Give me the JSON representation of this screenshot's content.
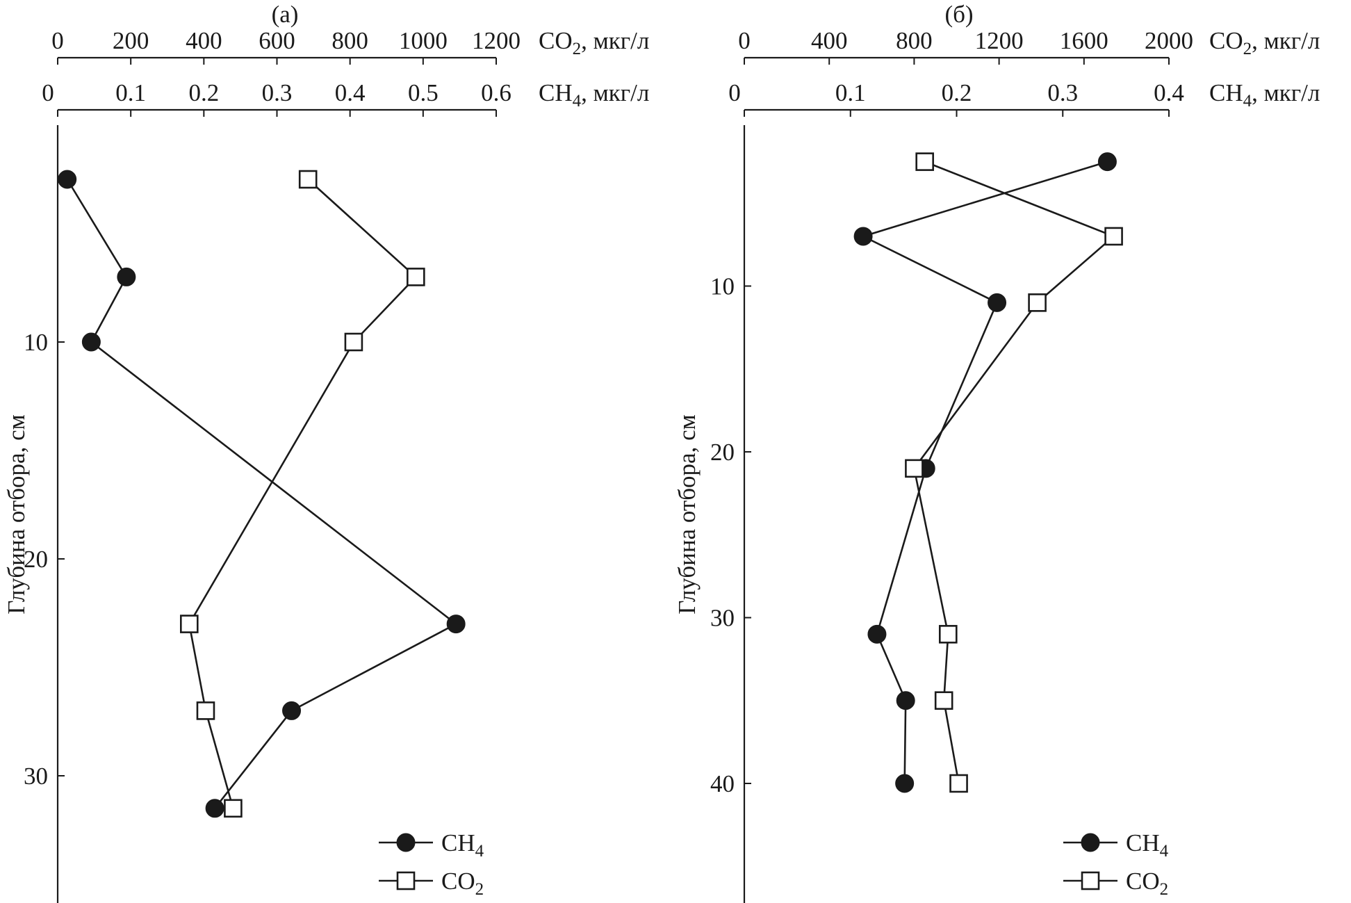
{
  "chart_data": [
    {
      "type": "line",
      "title": "(а)",
      "ylabel": "Глубина отбора, см",
      "ylim": [
        0,
        36
      ],
      "y_ticks": [
        10,
        20,
        30
      ],
      "x_axes": [
        {
          "series": "CO2",
          "label_main": "CO",
          "label_sub": "2",
          "label_rest": ", мкг/л",
          "range": [
            0,
            1200
          ],
          "ticks": [
            0,
            200,
            400,
            600,
            800,
            1000,
            1200
          ]
        },
        {
          "series": "CH4",
          "label_main": "CH",
          "label_sub": "4",
          "label_rest": ", мкг/л",
          "range": [
            0,
            0.6
          ],
          "ticks": [
            0,
            0.1,
            0.2,
            0.3,
            0.4,
            0.5,
            0.6
          ]
        }
      ],
      "series": [
        {
          "name": "CH4",
          "legend_main": "CH",
          "legend_sub": "4",
          "marker": "filled-circle",
          "depth": [
            2.5,
            7,
            10,
            23,
            27,
            31.5
          ],
          "values": [
            0.013,
            0.094,
            0.046,
            0.545,
            0.32,
            0.215
          ]
        },
        {
          "name": "CO2",
          "legend_main": "CO",
          "legend_sub": "2",
          "marker": "open-square",
          "depth": [
            2.5,
            7,
            10,
            23,
            27,
            31.5
          ],
          "values": [
            685,
            980,
            810,
            360,
            405,
            480
          ]
        }
      ]
    },
    {
      "type": "line",
      "title": "(б)",
      "ylabel": "Глубина отбора, см",
      "ylim": [
        0,
        47
      ],
      "y_ticks": [
        10,
        20,
        30,
        40
      ],
      "x_axes": [
        {
          "series": "CO2",
          "label_main": "CO",
          "label_sub": "2",
          "label_rest": ", мкг/л",
          "range": [
            0,
            2000
          ],
          "ticks": [
            0,
            400,
            800,
            1200,
            1600,
            2000
          ]
        },
        {
          "series": "CH4",
          "label_main": "CH",
          "label_sub": "4",
          "label_rest": ", мкг/л",
          "range": [
            0,
            0.4
          ],
          "ticks": [
            0,
            0.1,
            0.2,
            0.3,
            0.4
          ]
        }
      ],
      "series": [
        {
          "name": "CH4",
          "legend_main": "CH",
          "legend_sub": "4",
          "marker": "filled-circle",
          "depth": [
            2.5,
            7,
            11,
            21,
            31,
            35,
            40
          ],
          "values": [
            0.342,
            0.112,
            0.238,
            0.171,
            0.125,
            0.152,
            0.151
          ]
        },
        {
          "name": "CO2",
          "legend_main": "CO",
          "legend_sub": "2",
          "marker": "open-square",
          "depth": [
            2.5,
            7,
            11,
            21,
            31,
            35,
            40
          ],
          "values": [
            850,
            1740,
            1380,
            800,
            960,
            940,
            1010
          ]
        }
      ]
    }
  ]
}
